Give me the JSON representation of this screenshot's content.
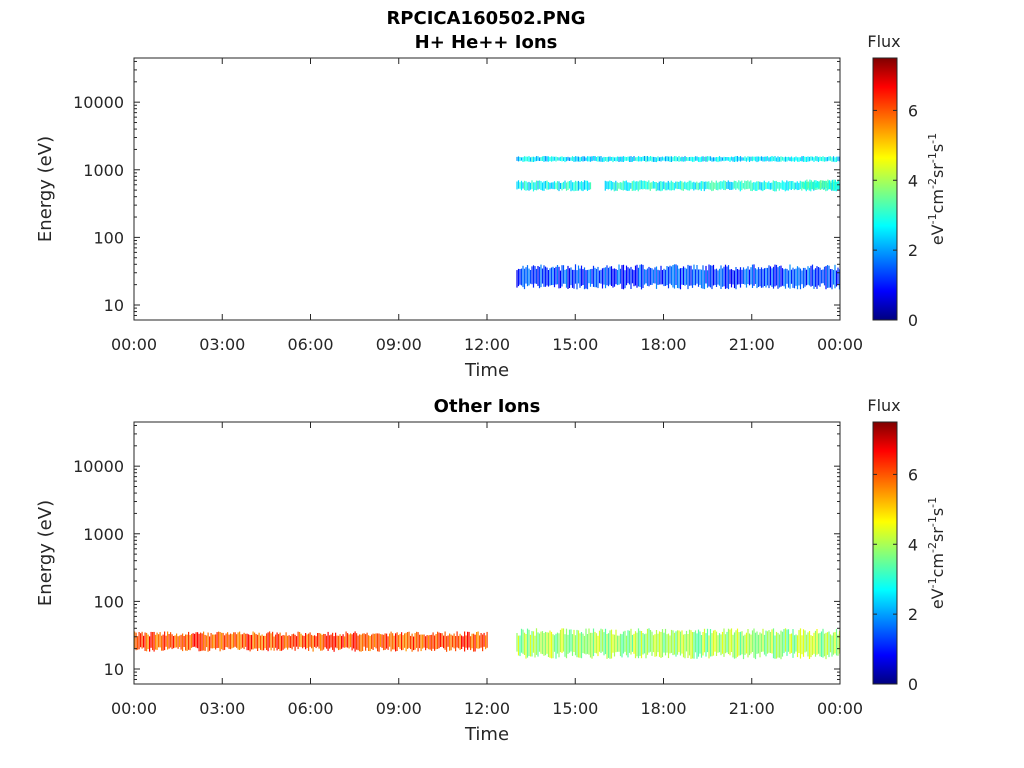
{
  "figure_title": "RPCICA160502.PNG",
  "chart_data": [
    {
      "type": "heatmap",
      "title": "H+ He++ Ions",
      "xlabel": "Time",
      "ylabel": "Energy (eV)",
      "x_tick_labels": [
        "00:00",
        "03:00",
        "06:00",
        "09:00",
        "12:00",
        "15:00",
        "18:00",
        "21:00",
        "00:00"
      ],
      "x_range_hours": [
        0,
        24
      ],
      "y_scale": "log",
      "y_range_eV": [
        6,
        45000
      ],
      "y_ticks": [
        10,
        100,
        1000,
        10000
      ],
      "y_tick_labels": [
        "10",
        "100",
        "1000",
        "10000"
      ],
      "colorbar": {
        "title": "Flux",
        "label_parts": [
          "eV",
          "-1",
          "cm",
          "-2",
          "sr",
          "-1",
          "s",
          "-1"
        ],
        "range": [
          0,
          7.5
        ],
        "ticks": [
          0,
          2,
          4,
          6
        ],
        "tick_labels": [
          "0",
          "2",
          "4",
          "6"
        ],
        "colormap": "jet"
      },
      "data_gaps_hours": [
        [
          0,
          13
        ]
      ],
      "bands": [
        {
          "t_start": 13,
          "t_end": 24,
          "e_low": 17,
          "e_high": 40,
          "flux": 1.4
        },
        {
          "t_start": 13,
          "t_end": 24,
          "e_low": 1300,
          "e_high": 1600,
          "flux": 2.6
        },
        {
          "t_start": 13,
          "t_end": 15.5,
          "e_low": 480,
          "e_high": 700,
          "flux": 2.8
        },
        {
          "t_start": 16,
          "t_end": 24,
          "e_low": 480,
          "e_high": 700,
          "flux": 2.9
        },
        {
          "t_start": 22.7,
          "t_end": 24,
          "e_low": 500,
          "e_high": 720,
          "flux": 3.1
        }
      ]
    },
    {
      "type": "heatmap",
      "title": "Other Ions",
      "xlabel": "Time",
      "ylabel": "Energy (eV)",
      "x_tick_labels": [
        "00:00",
        "03:00",
        "06:00",
        "09:00",
        "12:00",
        "15:00",
        "18:00",
        "21:00",
        "00:00"
      ],
      "x_range_hours": [
        0,
        24
      ],
      "y_scale": "log",
      "y_range_eV": [
        6,
        45000
      ],
      "y_ticks": [
        10,
        100,
        1000,
        10000
      ],
      "y_tick_labels": [
        "10",
        "100",
        "1000",
        "10000"
      ],
      "colorbar": {
        "title": "Flux",
        "label_parts": [
          "eV",
          "-1",
          "cm",
          "-2",
          "sr",
          "-1",
          "s",
          "-1"
        ],
        "range": [
          0,
          7.5
        ],
        "ticks": [
          0,
          2,
          4,
          6
        ],
        "tick_labels": [
          "0",
          "2",
          "4",
          "6"
        ],
        "colormap": "jet"
      },
      "data_gaps_hours": [
        [
          12,
          13
        ]
      ],
      "bands": [
        {
          "t_start": 0,
          "t_end": 12,
          "e_low": 18,
          "e_high": 36,
          "flux": 6.0
        },
        {
          "t_start": 13,
          "t_end": 24,
          "e_low": 14,
          "e_high": 40,
          "flux": 4.0
        }
      ]
    }
  ]
}
